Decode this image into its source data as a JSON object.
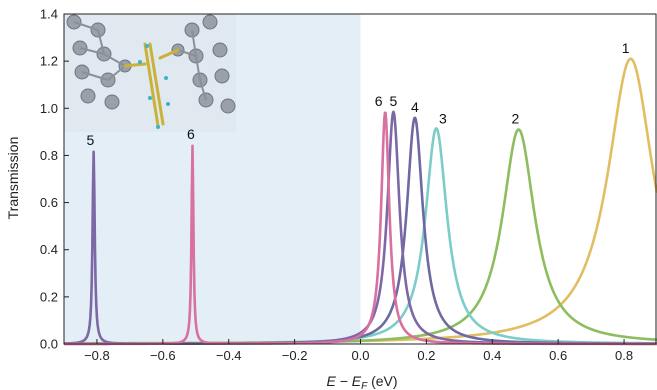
{
  "chart_data": {
    "type": "line",
    "title": "",
    "xlabel": {
      "main": "E − E",
      "sub": "F",
      "unit": " (eV)"
    },
    "ylabel": "Transmission",
    "xlim": [
      -0.9,
      0.9
    ],
    "ylim": [
      0.0,
      1.4
    ],
    "xticks": [
      -0.8,
      -0.6,
      -0.4,
      -0.2,
      0.0,
      0.2,
      0.4,
      0.6,
      0.8
    ],
    "xtick_labels": [
      "−0.8",
      "−0.6",
      "−0.4",
      "−0.2",
      "0.0",
      "0.2",
      "0.4",
      "0.6",
      "0.8"
    ],
    "yticks": [
      0.0,
      0.2,
      0.4,
      0.6,
      0.8,
      1.0,
      1.2,
      1.4
    ],
    "ytick_labels": [
      "0.0",
      "0.2",
      "0.4",
      "0.6",
      "0.8",
      "1.0",
      "1.2",
      "1.4"
    ],
    "grid": false,
    "shaded_region": {
      "x": [
        -0.9,
        0.0
      ],
      "color": "#e3eef6"
    },
    "inset": "molecular junction structure (gold electrodes with a molecule bridging them)",
    "series": [
      {
        "name": "1",
        "color": "#e2be62",
        "peaks": [
          {
            "x": 0.82,
            "y": 1.21,
            "width": 0.17
          }
        ],
        "label_at": [
          0.805,
          1.235
        ]
      },
      {
        "name": "2",
        "color": "#8dbd5e",
        "peaks": [
          {
            "x": 0.48,
            "y": 0.91,
            "width": 0.12
          }
        ],
        "label_at": [
          0.47,
          0.935
        ]
      },
      {
        "name": "3",
        "color": "#7ccdc8",
        "peaks": [
          {
            "x": 0.23,
            "y": 0.915,
            "width": 0.08
          }
        ],
        "label_at": [
          0.25,
          0.935
        ]
      },
      {
        "name": "4",
        "color": "#6d6aa2",
        "peaks": [
          {
            "x": 0.165,
            "y": 0.96,
            "width": 0.06
          }
        ],
        "label_at": [
          0.165,
          0.985
        ]
      },
      {
        "name": "5",
        "color": "#7d68a6",
        "peaks": [
          {
            "x": 0.1,
            "y": 0.985,
            "width": 0.045
          },
          {
            "x": -0.81,
            "y": 0.815,
            "width": 0.008
          }
        ],
        "label_at": [
          0.1,
          1.01
        ],
        "label2_at": [
          -0.82,
          0.845
        ]
      },
      {
        "name": "6",
        "color": "#d870a0",
        "peaks": [
          {
            "x": 0.075,
            "y": 0.985,
            "width": 0.03
          },
          {
            "x": -0.51,
            "y": 0.84,
            "width": 0.007
          }
        ],
        "label_at": [
          0.055,
          1.01
        ],
        "label2_at": [
          -0.515,
          0.87
        ]
      }
    ]
  }
}
